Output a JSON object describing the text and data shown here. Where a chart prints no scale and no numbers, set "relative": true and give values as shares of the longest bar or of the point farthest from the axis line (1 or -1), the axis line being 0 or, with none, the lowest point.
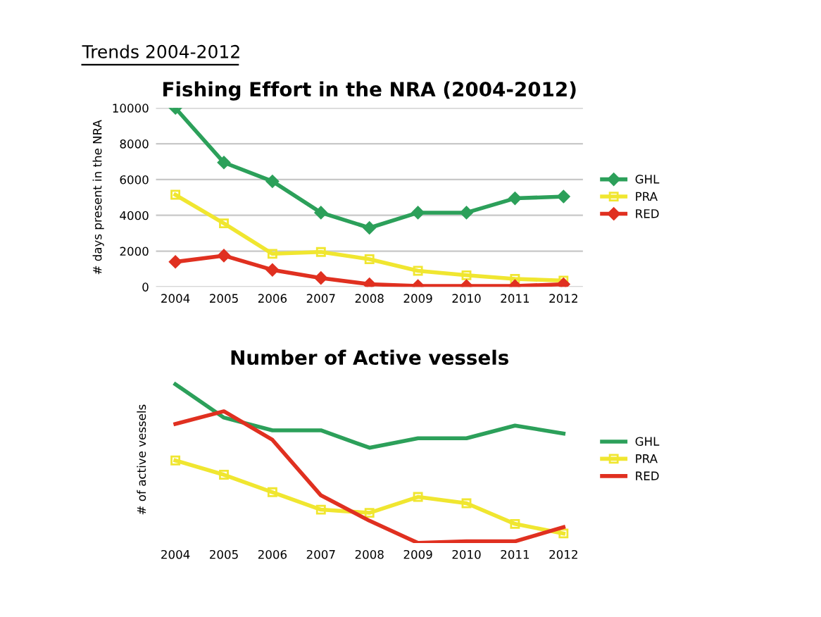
{
  "chart_data": [
    {
      "type": "line",
      "title": "Fishing Effort in the NRA (2004-2012)",
      "ylabel": "# days present in the NRA",
      "annotations": [
        "Trends 2004-2012"
      ],
      "categories": [
        "2004",
        "2005",
        "2006",
        "2007",
        "2008",
        "2009",
        "2010",
        "2011",
        "2012"
      ],
      "series": [
        {
          "name": "GHL",
          "color": "#2ca05a",
          "marker": "diamond",
          "values": [
            10000,
            6950,
            5900,
            4150,
            3300,
            4150,
            4150,
            4950,
            5050
          ]
        },
        {
          "name": "PRA",
          "color": "#f0e630",
          "marker": "square",
          "values": [
            5150,
            3550,
            1850,
            1950,
            1550,
            900,
            650,
            450,
            350
          ]
        },
        {
          "name": "RED",
          "color": "#e03020",
          "marker": "diamond",
          "values": [
            1400,
            1750,
            950,
            500,
            150,
            50,
            50,
            50,
            150
          ]
        }
      ],
      "ylim": [
        0,
        10000
      ],
      "yticks": [
        0,
        2000,
        4000,
        6000,
        8000,
        10000
      ],
      "grid": "y",
      "legend": "right"
    },
    {
      "type": "line",
      "title": "Number of Active vessels",
      "ylabel": "# of active vessels",
      "relative": true,
      "categories": [
        "2004",
        "2005",
        "2006",
        "2007",
        "2008",
        "2009",
        "2010",
        "2011",
        "2012"
      ],
      "series": [
        {
          "name": "GHL",
          "color": "#2ca05a",
          "marker": "none",
          "values": [
            1.0,
            0.79,
            0.71,
            0.71,
            0.6,
            0.66,
            0.66,
            0.74,
            0.69
          ]
        },
        {
          "name": "PRA",
          "color": "#f0e630",
          "marker": "square",
          "values": [
            0.52,
            0.43,
            0.32,
            0.21,
            0.19,
            0.29,
            0.25,
            0.12,
            0.06
          ]
        },
        {
          "name": "RED",
          "color": "#e03020",
          "marker": "none",
          "values": [
            0.75,
            0.83,
            0.65,
            0.3,
            0.14,
            0.0,
            0.01,
            0.01,
            0.1
          ]
        }
      ],
      "legend": "right"
    }
  ]
}
